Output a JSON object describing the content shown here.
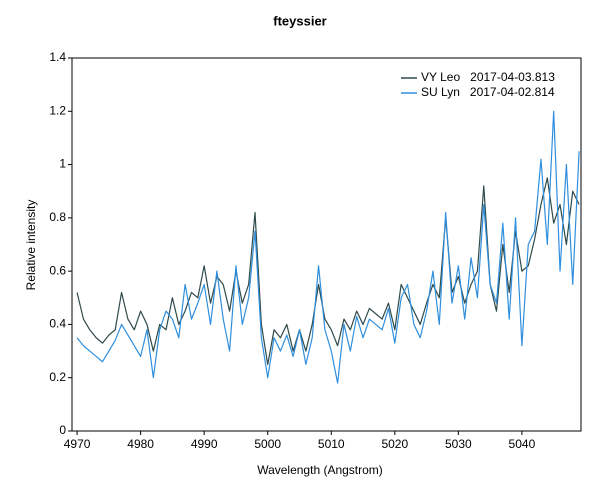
{
  "chart_data": {
    "type": "line",
    "title": "fteyssier",
    "x_label": "Wavelength (Angstrom)",
    "y_label": "Relative intensity",
    "x": [
      4970,
      4971,
      4972,
      4973,
      4974,
      4975,
      4976,
      4977,
      4978,
      4979,
      4980,
      4981,
      4982,
      4983,
      4984,
      4985,
      4986,
      4987,
      4988,
      4989,
      4990,
      4991,
      4992,
      4993,
      4994,
      4995,
      4996,
      4997,
      4998,
      4999,
      5000,
      5001,
      5002,
      5003,
      5004,
      5005,
      5006,
      5007,
      5008,
      5009,
      5010,
      5011,
      5012,
      5013,
      5014,
      5015,
      5016,
      5017,
      5018,
      5019,
      5020,
      5021,
      5022,
      5023,
      5024,
      5025,
      5026,
      5027,
      5028,
      5029,
      5030,
      5031,
      5032,
      5033,
      5034,
      5035,
      5036,
      5037,
      5038,
      5039,
      5040,
      5041,
      5042,
      5043,
      5044,
      5045,
      5046,
      5047,
      5048,
      5049
    ],
    "series": [
      {
        "name": "VY Leo   2017-04-03.813",
        "color": "#2f4a4a",
        "values": [
          0.52,
          0.42,
          0.38,
          0.35,
          0.33,
          0.36,
          0.38,
          0.52,
          0.42,
          0.38,
          0.45,
          0.4,
          0.3,
          0.4,
          0.38,
          0.5,
          0.4,
          0.45,
          0.52,
          0.5,
          0.62,
          0.48,
          0.58,
          0.55,
          0.45,
          0.6,
          0.48,
          0.55,
          0.82,
          0.4,
          0.25,
          0.38,
          0.35,
          0.4,
          0.3,
          0.38,
          0.3,
          0.4,
          0.55,
          0.42,
          0.38,
          0.32,
          0.42,
          0.38,
          0.45,
          0.4,
          0.46,
          0.44,
          0.42,
          0.48,
          0.38,
          0.55,
          0.5,
          0.45,
          0.4,
          0.48,
          0.55,
          0.5,
          0.8,
          0.52,
          0.58,
          0.48,
          0.55,
          0.6,
          0.92,
          0.55,
          0.45,
          0.7,
          0.52,
          0.75,
          0.6,
          0.62,
          0.72,
          0.85,
          0.95,
          0.78,
          0.85,
          0.7,
          0.9,
          0.85
        ]
      },
      {
        "name": "SU Lyn   2017-04-02.814",
        "color": "#2f8fde",
        "values": [
          0.35,
          0.32,
          0.3,
          0.28,
          0.26,
          0.3,
          0.34,
          0.4,
          0.36,
          0.32,
          0.28,
          0.38,
          0.2,
          0.38,
          0.45,
          0.42,
          0.35,
          0.55,
          0.42,
          0.48,
          0.55,
          0.4,
          0.6,
          0.42,
          0.3,
          0.62,
          0.4,
          0.5,
          0.75,
          0.35,
          0.2,
          0.35,
          0.3,
          0.36,
          0.28,
          0.38,
          0.25,
          0.35,
          0.62,
          0.38,
          0.3,
          0.18,
          0.4,
          0.3,
          0.43,
          0.35,
          0.42,
          0.4,
          0.38,
          0.46,
          0.33,
          0.5,
          0.55,
          0.4,
          0.35,
          0.45,
          0.6,
          0.4,
          0.82,
          0.48,
          0.62,
          0.42,
          0.65,
          0.5,
          0.85,
          0.55,
          0.48,
          0.78,
          0.42,
          0.8,
          0.32,
          0.7,
          0.75,
          1.02,
          0.7,
          1.2,
          0.6,
          1.0,
          0.55,
          1.05
        ]
      }
    ],
    "xlim": [
      4969.2,
      5049.3
    ],
    "ylim": [
      0,
      1.4
    ],
    "xticks": [
      4970,
      4980,
      4990,
      5000,
      5010,
      5020,
      5030,
      5040
    ],
    "yticks": [
      0,
      0.2,
      0.4,
      0.6,
      0.8,
      1,
      1.2,
      1.4
    ],
    "legend": "upper right"
  }
}
